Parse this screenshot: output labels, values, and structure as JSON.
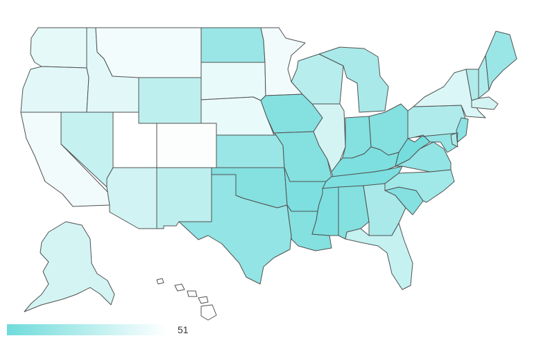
{
  "map": {
    "type": "choropleth",
    "region": "USA",
    "color_scale": {
      "low_color": "#ffffff",
      "high_color": "#6fdbdb",
      "direction": "high-at-left"
    },
    "legend": {
      "max_label": "51",
      "placement": "bottom-left"
    },
    "state_fill_levels": {
      "WA": 0.18,
      "OR": 0.2,
      "CA": 0.1,
      "NV": 0.4,
      "ID": 0.2,
      "MT": 0.08,
      "WY": 0.45,
      "UT": 0.0,
      "CO": 0.02,
      "AZ": 0.32,
      "NM": 0.45,
      "ND": 0.7,
      "SD": 0.15,
      "NE": 0.15,
      "KS": 0.7,
      "OK": 0.85,
      "TX": 0.75,
      "MN": 0.1,
      "IA": 0.85,
      "MO": 0.85,
      "AR": 0.9,
      "LA": 0.85,
      "WI": 0.5,
      "IL": 0.3,
      "MI": 0.6,
      "IN": 0.85,
      "OH": 0.85,
      "KY": 0.9,
      "TN": 0.9,
      "MS": 0.9,
      "AL": 0.85,
      "GA": 0.6,
      "FL": 0.4,
      "SC": 0.85,
      "NC": 0.65,
      "VA": 0.75,
      "WV": 0.95,
      "PA": 0.55,
      "NY": 0.25,
      "VT": 0.55,
      "NH": 0.55,
      "ME": 0.7,
      "MA": 0.3,
      "NJ": 0.8,
      "DE": 0.6,
      "MD": 0.75,
      "AK": 0.3,
      "HI": 0.0
    }
  }
}
